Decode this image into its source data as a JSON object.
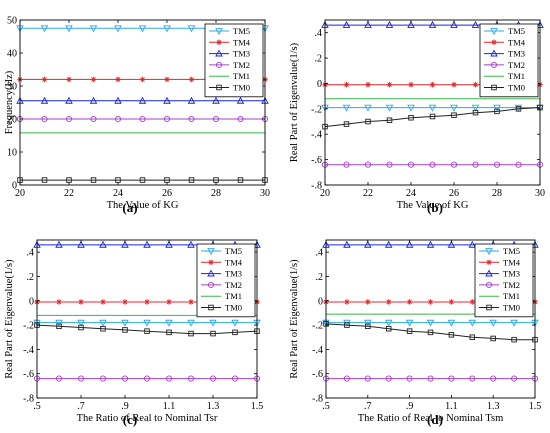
{
  "chart_data": [
    {
      "type": "line",
      "panel_label": "(a)",
      "xlabel": "The Value of KG",
      "ylabel": "Frequency(Hz)",
      "xlim": [
        20,
        30
      ],
      "ylim": [
        0,
        50
      ],
      "xticks": [
        20,
        22,
        24,
        26,
        28,
        30
      ],
      "yticks": [
        0,
        10,
        20,
        30,
        40,
        50
      ],
      "x": [
        20,
        21,
        22,
        23,
        24,
        25,
        26,
        27,
        28,
        29,
        30
      ],
      "grid": false,
      "legend_position": "top-right",
      "series": [
        {
          "name": "TM5",
          "color": "#2ea8e8",
          "marker": "triangle-down",
          "values": [
            47.5,
            47.5,
            47.5,
            47.5,
            47.5,
            47.5,
            47.5,
            47.5,
            47.5,
            47.5,
            47.5
          ]
        },
        {
          "name": "TM4",
          "color": "#e0262d",
          "marker": "star",
          "values": [
            32,
            32,
            32,
            32,
            32,
            32,
            32,
            32,
            32,
            32,
            32
          ]
        },
        {
          "name": "TM3",
          "color": "#1b24d6",
          "marker": "triangle-up",
          "values": [
            25.5,
            25.5,
            25.5,
            25.5,
            25.5,
            25.5,
            25.5,
            25.5,
            25.5,
            25.5,
            25.5
          ]
        },
        {
          "name": "TM2",
          "color": "#a540c8",
          "marker": "circle",
          "values": [
            20,
            20,
            20,
            20,
            20,
            20,
            20,
            20,
            20,
            20,
            20
          ]
        },
        {
          "name": "TM1",
          "color": "#39b54a",
          "marker": "none",
          "values": [
            15.8,
            15.8,
            15.8,
            15.8,
            15.8,
            15.8,
            15.8,
            15.8,
            15.8,
            15.8,
            15.8
          ]
        },
        {
          "name": "TM0",
          "color": "#222222",
          "marker": "square",
          "values": [
            1.5,
            1.5,
            1.5,
            1.5,
            1.5,
            1.5,
            1.5,
            1.5,
            1.5,
            1.5,
            1.5
          ]
        }
      ]
    },
    {
      "type": "line",
      "panel_label": "(b)",
      "xlabel": "The Value of KG",
      "ylabel": "Real Part of Eigenvalue(1/s)",
      "xlim": [
        20,
        30
      ],
      "ylim": [
        -0.8,
        0.5
      ],
      "xticks": [
        20,
        22,
        24,
        26,
        28,
        30
      ],
      "yticks": [
        -0.8,
        -0.6,
        -0.4,
        -0.2,
        0,
        0.2,
        0.4
      ],
      "x": [
        20,
        21,
        22,
        23,
        24,
        25,
        26,
        27,
        28,
        29,
        30
      ],
      "grid": false,
      "legend_position": "top-right",
      "series": [
        {
          "name": "TM5",
          "color": "#2ea8e8",
          "marker": "triangle-down",
          "values": [
            -0.19,
            -0.19,
            -0.19,
            -0.19,
            -0.19,
            -0.19,
            -0.19,
            -0.19,
            -0.19,
            -0.19,
            -0.19
          ]
        },
        {
          "name": "TM4",
          "color": "#e0262d",
          "marker": "star",
          "values": [
            -0.01,
            -0.01,
            -0.01,
            -0.01,
            -0.01,
            -0.01,
            -0.01,
            -0.01,
            -0.01,
            -0.01,
            -0.01
          ]
        },
        {
          "name": "TM3",
          "color": "#1b24d6",
          "marker": "triangle-up",
          "values": [
            0.46,
            0.46,
            0.46,
            0.46,
            0.46,
            0.46,
            0.46,
            0.46,
            0.46,
            0.46,
            0.46
          ]
        },
        {
          "name": "TM2",
          "color": "#a540c8",
          "marker": "circle",
          "values": [
            -0.64,
            -0.64,
            -0.64,
            -0.64,
            -0.64,
            -0.64,
            -0.64,
            -0.64,
            -0.64,
            -0.64,
            -0.64
          ]
        },
        {
          "name": "TM1",
          "color": "#39b54a",
          "marker": "none",
          "values": [
            -0.12,
            -0.12,
            -0.12,
            -0.12,
            -0.12,
            -0.12,
            -0.12,
            -0.12,
            -0.12,
            -0.12,
            -0.12
          ]
        },
        {
          "name": "TM0",
          "color": "#222222",
          "marker": "square",
          "values": [
            -0.34,
            -0.32,
            -0.3,
            -0.29,
            -0.27,
            -0.26,
            -0.25,
            -0.23,
            -0.22,
            -0.2,
            -0.19
          ]
        }
      ]
    },
    {
      "type": "line",
      "panel_label": "(c)",
      "xlabel": "The Ratio of Real to Nominal Tsr",
      "ylabel": "Real Part of Eigenvalue(1/s)",
      "xlim": [
        0.5,
        1.5
      ],
      "ylim": [
        -0.8,
        0.5
      ],
      "xticks": [
        0.5,
        0.7,
        0.9,
        1.1,
        1.3,
        1.5
      ],
      "yticks": [
        -0.8,
        -0.6,
        -0.4,
        -0.2,
        0,
        0.2,
        0.4
      ],
      "x": [
        0.5,
        0.6,
        0.7,
        0.8,
        0.9,
        1.0,
        1.1,
        1.2,
        1.3,
        1.4,
        1.5
      ],
      "grid": false,
      "legend_position": "top-right",
      "series": [
        {
          "name": "TM5",
          "color": "#2ea8e8",
          "marker": "triangle-down",
          "values": [
            -0.18,
            -0.18,
            -0.18,
            -0.18,
            -0.18,
            -0.18,
            -0.18,
            -0.18,
            -0.18,
            -0.18,
            -0.18
          ]
        },
        {
          "name": "TM4",
          "color": "#e0262d",
          "marker": "star",
          "values": [
            -0.01,
            -0.01,
            -0.01,
            -0.01,
            -0.01,
            -0.01,
            -0.01,
            -0.01,
            -0.01,
            -0.01,
            -0.01
          ]
        },
        {
          "name": "TM3",
          "color": "#1b24d6",
          "marker": "triangle-up",
          "values": [
            0.46,
            0.46,
            0.46,
            0.46,
            0.46,
            0.46,
            0.46,
            0.46,
            0.46,
            0.46,
            0.46
          ]
        },
        {
          "name": "TM2",
          "color": "#a540c8",
          "marker": "circle",
          "values": [
            -0.64,
            -0.64,
            -0.64,
            -0.64,
            -0.64,
            -0.64,
            -0.64,
            -0.64,
            -0.64,
            -0.64,
            -0.64
          ]
        },
        {
          "name": "TM1",
          "color": "#39b54a",
          "marker": "none",
          "values": [
            -0.12,
            -0.12,
            -0.12,
            -0.12,
            -0.12,
            -0.12,
            -0.12,
            -0.12,
            -0.12,
            -0.12,
            -0.12
          ]
        },
        {
          "name": "TM0",
          "color": "#222222",
          "marker": "square",
          "values": [
            -0.2,
            -0.21,
            -0.22,
            -0.23,
            -0.24,
            -0.25,
            -0.26,
            -0.27,
            -0.27,
            -0.26,
            -0.25
          ]
        }
      ]
    },
    {
      "type": "line",
      "panel_label": "(d)",
      "xlabel": "The Ratio of Real to Nominal Tsm",
      "ylabel": "Real Part of Eigenvalue(1/s)",
      "xlim": [
        0.5,
        1.5
      ],
      "ylim": [
        -0.8,
        0.5
      ],
      "xticks": [
        0.5,
        0.7,
        0.9,
        1.1,
        1.3,
        1.5
      ],
      "yticks": [
        -0.8,
        -0.6,
        -0.4,
        -0.2,
        0,
        0.2,
        0.4
      ],
      "x": [
        0.5,
        0.6,
        0.7,
        0.8,
        0.9,
        1.0,
        1.1,
        1.2,
        1.3,
        1.4,
        1.5
      ],
      "grid": false,
      "legend_position": "top-right",
      "series": [
        {
          "name": "TM5",
          "color": "#2ea8e8",
          "marker": "triangle-down",
          "values": [
            -0.18,
            -0.18,
            -0.18,
            -0.18,
            -0.18,
            -0.18,
            -0.18,
            -0.18,
            -0.18,
            -0.18,
            -0.18
          ]
        },
        {
          "name": "TM4",
          "color": "#e0262d",
          "marker": "star",
          "values": [
            -0.01,
            -0.01,
            -0.01,
            -0.01,
            -0.01,
            -0.01,
            -0.01,
            -0.01,
            -0.01,
            -0.01,
            -0.01
          ]
        },
        {
          "name": "TM3",
          "color": "#1b24d6",
          "marker": "triangle-up",
          "values": [
            0.46,
            0.46,
            0.46,
            0.46,
            0.46,
            0.46,
            0.46,
            0.46,
            0.46,
            0.46,
            0.46
          ]
        },
        {
          "name": "TM2",
          "color": "#a540c8",
          "marker": "circle",
          "values": [
            -0.64,
            -0.64,
            -0.64,
            -0.64,
            -0.64,
            -0.64,
            -0.64,
            -0.64,
            -0.64,
            -0.64,
            -0.64
          ]
        },
        {
          "name": "TM1",
          "color": "#39b54a",
          "marker": "none",
          "values": [
            -0.11,
            -0.11,
            -0.11,
            -0.11,
            -0.11,
            -0.11,
            -0.11,
            -0.11,
            -0.11,
            -0.11,
            -0.11
          ]
        },
        {
          "name": "TM0",
          "color": "#222222",
          "marker": "square",
          "values": [
            -0.19,
            -0.2,
            -0.21,
            -0.23,
            -0.25,
            -0.26,
            -0.28,
            -0.3,
            -0.31,
            -0.32,
            -0.32
          ]
        }
      ]
    }
  ]
}
